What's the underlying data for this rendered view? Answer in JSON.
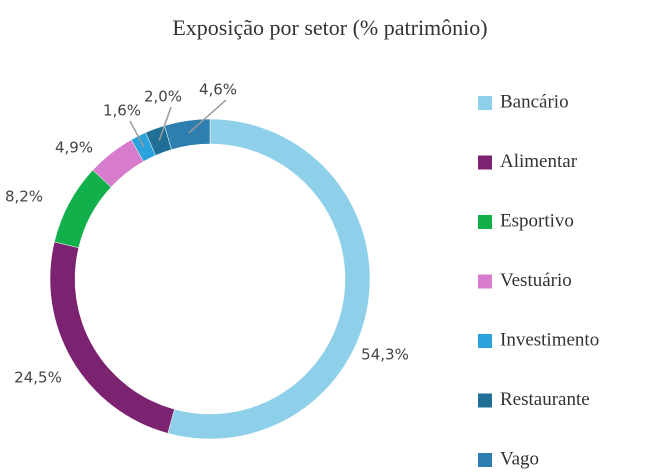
{
  "chart_data": {
    "type": "donut",
    "title": "Exposição por setor (% patrimônio)",
    "categories": [
      "Bancário",
      "Alimentar",
      "Esportivo",
      "Vestuário",
      "Investimento",
      "Restaurante",
      "Vago"
    ],
    "values": [
      54.3,
      24.5,
      8.2,
      4.9,
      1.6,
      2.0,
      4.6
    ],
    "value_labels": [
      "54,3%",
      "24,5%",
      "8,2%",
      "4,9%",
      "1,6%",
      "2,0%",
      "4,6%"
    ],
    "colors": [
      "#8ecfe9",
      "#7b2270",
      "#12b04b",
      "#d77bcd",
      "#2aa3dc",
      "#1f6f96",
      "#2e7fb0"
    ],
    "legend": "right"
  }
}
